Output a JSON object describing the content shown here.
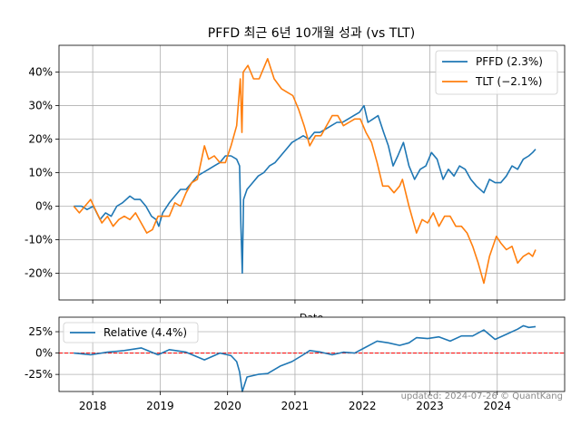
{
  "chart_data": [
    {
      "type": "line",
      "title": "PFFD 최근 6년 10개월 성과 (vs TLT)",
      "xlabel": "Date",
      "ylabel": "",
      "x_ticks": [
        "2018",
        "2019",
        "2020",
        "2021",
        "2022",
        "2023",
        "2024"
      ],
      "y_ticks": [
        "-20%",
        "-10%",
        "0%",
        "10%",
        "20%",
        "30%",
        "40%"
      ],
      "ylim": [
        -28,
        48
      ],
      "xlim": [
        "2017-07",
        "2025-01"
      ],
      "grid": true,
      "legend_position": "top-right",
      "series": [
        {
          "name": "PFFD (2.3%)",
          "color": "#1f77b4",
          "points": [
            [
              "2017-09-20",
              0
            ],
            [
              "2017-11-01",
              0
            ],
            [
              "2017-12-01",
              -1
            ],
            [
              "2018-01-05",
              0
            ],
            [
              "2018-02-10",
              -4
            ],
            [
              "2018-03-10",
              -2
            ],
            [
              "2018-04-10",
              -3
            ],
            [
              "2018-05-10",
              0
            ],
            [
              "2018-06-10",
              1
            ],
            [
              "2018-07-20",
              3
            ],
            [
              "2018-08-15",
              2
            ],
            [
              "2018-09-15",
              2
            ],
            [
              "2018-10-15",
              0
            ],
            [
              "2018-11-15",
              -3
            ],
            [
              "2018-12-10",
              -4
            ],
            [
              "2018-12-24",
              -6
            ],
            [
              "2019-01-15",
              -2
            ],
            [
              "2019-02-20",
              1
            ],
            [
              "2019-03-20",
              3
            ],
            [
              "2019-04-20",
              5
            ],
            [
              "2019-05-20",
              5
            ],
            [
              "2019-06-20",
              7
            ],
            [
              "2019-07-20",
              9
            ],
            [
              "2019-08-20",
              10
            ],
            [
              "2019-09-20",
              11
            ],
            [
              "2019-10-20",
              12
            ],
            [
              "2019-11-20",
              13
            ],
            [
              "2019-12-20",
              15
            ],
            [
              "2020-01-20",
              15
            ],
            [
              "2020-02-20",
              14
            ],
            [
              "2020-03-05",
              12
            ],
            [
              "2020-03-12",
              -5
            ],
            [
              "2020-03-20",
              -20
            ],
            [
              "2020-03-27",
              2
            ],
            [
              "2020-04-15",
              5
            ],
            [
              "2020-05-15",
              7
            ],
            [
              "2020-06-15",
              9
            ],
            [
              "2020-07-15",
              10
            ],
            [
              "2020-08-15",
              12
            ],
            [
              "2020-09-15",
              13
            ],
            [
              "2020-10-15",
              15
            ],
            [
              "2020-11-15",
              17
            ],
            [
              "2020-12-15",
              19
            ],
            [
              "2021-01-15",
              20
            ],
            [
              "2021-02-15",
              21
            ],
            [
              "2021-03-15",
              20
            ],
            [
              "2021-04-15",
              22
            ],
            [
              "2021-05-15",
              22
            ],
            [
              "2021-06-15",
              23
            ],
            [
              "2021-07-15",
              24
            ],
            [
              "2021-08-15",
              25
            ],
            [
              "2021-09-15",
              25
            ],
            [
              "2021-10-15",
              26
            ],
            [
              "2021-11-15",
              27
            ],
            [
              "2021-12-15",
              28
            ],
            [
              "2022-01-10",
              30
            ],
            [
              "2022-01-31",
              25
            ],
            [
              "2022-02-28",
              26
            ],
            [
              "2022-03-25",
              27
            ],
            [
              "2022-04-25",
              22
            ],
            [
              "2022-05-20",
              18
            ],
            [
              "2022-06-15",
              12
            ],
            [
              "2022-07-10",
              15
            ],
            [
              "2022-08-10",
              19
            ],
            [
              "2022-09-10",
              12
            ],
            [
              "2022-10-10",
              8
            ],
            [
              "2022-11-10",
              11
            ],
            [
              "2022-12-10",
              12
            ],
            [
              "2023-01-10",
              16
            ],
            [
              "2023-02-10",
              14
            ],
            [
              "2023-03-12",
              8
            ],
            [
              "2023-04-10",
              11
            ],
            [
              "2023-05-10",
              9
            ],
            [
              "2023-06-10",
              12
            ],
            [
              "2023-07-10",
              11
            ],
            [
              "2023-08-10",
              8
            ],
            [
              "2023-09-10",
              6
            ],
            [
              "2023-10-20",
              4
            ],
            [
              "2023-11-20",
              8
            ],
            [
              "2023-12-20",
              7
            ],
            [
              "2024-01-20",
              7
            ],
            [
              "2024-02-20",
              9
            ],
            [
              "2024-03-20",
              12
            ],
            [
              "2024-04-20",
              11
            ],
            [
              "2024-05-20",
              14
            ],
            [
              "2024-06-20",
              15
            ],
            [
              "2024-07-10",
              16
            ],
            [
              "2024-07-26",
              17
            ]
          ]
        },
        {
          "name": "TLT (−2.1%)",
          "color": "#ff7f0e",
          "points": [
            [
              "2017-09-20",
              0
            ],
            [
              "2017-10-20",
              -2
            ],
            [
              "2017-11-20",
              0
            ],
            [
              "2017-12-20",
              2
            ],
            [
              "2018-01-15",
              -1
            ],
            [
              "2018-02-20",
              -5
            ],
            [
              "2018-03-20",
              -3
            ],
            [
              "2018-04-20",
              -6
            ],
            [
              "2018-05-20",
              -4
            ],
            [
              "2018-06-20",
              -3
            ],
            [
              "2018-07-20",
              -4
            ],
            [
              "2018-08-20",
              -2
            ],
            [
              "2018-09-20",
              -5
            ],
            [
              "2018-10-20",
              -8
            ],
            [
              "2018-11-20",
              -7
            ],
            [
              "2018-12-20",
              -3
            ],
            [
              "2019-01-20",
              -3
            ],
            [
              "2019-02-20",
              -3
            ],
            [
              "2019-03-20",
              1
            ],
            [
              "2019-04-20",
              0
            ],
            [
              "2019-05-20",
              4
            ],
            [
              "2019-06-20",
              7
            ],
            [
              "2019-07-20",
              8
            ],
            [
              "2019-08-28",
              18
            ],
            [
              "2019-09-20",
              14
            ],
            [
              "2019-10-20",
              15
            ],
            [
              "2019-11-20",
              13
            ],
            [
              "2019-12-20",
              13
            ],
            [
              "2020-01-20",
              18
            ],
            [
              "2020-02-20",
              24
            ],
            [
              "2020-03-09",
              38
            ],
            [
              "2020-03-18",
              22
            ],
            [
              "2020-03-25",
              40
            ],
            [
              "2020-04-20",
              42
            ],
            [
              "2020-05-20",
              38
            ],
            [
              "2020-06-20",
              38
            ],
            [
              "2020-07-20",
              42
            ],
            [
              "2020-08-05",
              44
            ],
            [
              "2020-09-10",
              38
            ],
            [
              "2020-10-20",
              35
            ],
            [
              "2020-11-20",
              34
            ],
            [
              "2020-12-20",
              33
            ],
            [
              "2021-01-20",
              29
            ],
            [
              "2021-02-20",
              24
            ],
            [
              "2021-03-20",
              18
            ],
            [
              "2021-04-20",
              21
            ],
            [
              "2021-05-20",
              21
            ],
            [
              "2021-06-20",
              24
            ],
            [
              "2021-07-20",
              27
            ],
            [
              "2021-08-20",
              27
            ],
            [
              "2021-09-20",
              24
            ],
            [
              "2021-10-20",
              25
            ],
            [
              "2021-11-20",
              26
            ],
            [
              "2021-12-20",
              26
            ],
            [
              "2022-01-20",
              22
            ],
            [
              "2022-02-20",
              19
            ],
            [
              "2022-03-20",
              13
            ],
            [
              "2022-04-20",
              6
            ],
            [
              "2022-05-20",
              6
            ],
            [
              "2022-06-20",
              4
            ],
            [
              "2022-07-20",
              6
            ],
            [
              "2022-08-05",
              8
            ],
            [
              "2022-09-10",
              0
            ],
            [
              "2022-10-20",
              -8
            ],
            [
              "2022-11-20",
              -4
            ],
            [
              "2022-12-20",
              -5
            ],
            [
              "2023-01-20",
              -2
            ],
            [
              "2023-02-20",
              -6
            ],
            [
              "2023-03-20",
              -3
            ],
            [
              "2023-04-20",
              -3
            ],
            [
              "2023-05-20",
              -6
            ],
            [
              "2023-06-20",
              -6
            ],
            [
              "2023-07-20",
              -8
            ],
            [
              "2023-08-20",
              -12
            ],
            [
              "2023-09-20",
              -17
            ],
            [
              "2023-10-20",
              -23
            ],
            [
              "2023-11-20",
              -15
            ],
            [
              "2023-12-27",
              -9
            ],
            [
              "2024-01-20",
              -11
            ],
            [
              "2024-02-20",
              -13
            ],
            [
              "2024-03-20",
              -12
            ],
            [
              "2024-04-20",
              -17
            ],
            [
              "2024-05-20",
              -15
            ],
            [
              "2024-06-20",
              -14
            ],
            [
              "2024-07-10",
              -15
            ],
            [
              "2024-07-26",
              -13
            ]
          ]
        }
      ]
    },
    {
      "type": "line",
      "title": "",
      "xlabel": "",
      "ylabel": "",
      "x_ticks": [
        "2018",
        "2019",
        "2020",
        "2021",
        "2022",
        "2023",
        "2024"
      ],
      "y_ticks": [
        "-25%",
        "0%",
        "25%"
      ],
      "ylim": [
        -45,
        42
      ],
      "xlim": [
        "2017-07",
        "2025-01"
      ],
      "grid": true,
      "legend_position": "top-left",
      "reference_line": {
        "y": 0,
        "color": "#ff0000",
        "style": "dashed"
      },
      "series": [
        {
          "name": "Relative (4.4%)",
          "color": "#1f77b4",
          "points": [
            [
              "2017-09-20",
              0
            ],
            [
              "2017-12-20",
              -2
            ],
            [
              "2018-03-20",
              1
            ],
            [
              "2018-06-20",
              3
            ],
            [
              "2018-09-20",
              6
            ],
            [
              "2018-12-20",
              -2
            ],
            [
              "2019-02-20",
              4
            ],
            [
              "2019-05-20",
              1
            ],
            [
              "2019-08-28",
              -8
            ],
            [
              "2019-11-20",
              0
            ],
            [
              "2020-01-20",
              -3
            ],
            [
              "2020-02-20",
              -10
            ],
            [
              "2020-03-05",
              -22
            ],
            [
              "2020-03-20",
              -45
            ],
            [
              "2020-04-15",
              -28
            ],
            [
              "2020-06-15",
              -25
            ],
            [
              "2020-08-05",
              -24
            ],
            [
              "2020-10-15",
              -15
            ],
            [
              "2020-12-15",
              -10
            ],
            [
              "2021-02-15",
              -2
            ],
            [
              "2021-03-20",
              3
            ],
            [
              "2021-05-20",
              1
            ],
            [
              "2021-07-20",
              -2
            ],
            [
              "2021-09-20",
              1
            ],
            [
              "2021-11-20",
              0
            ],
            [
              "2022-01-20",
              7
            ],
            [
              "2022-03-20",
              14
            ],
            [
              "2022-05-20",
              12
            ],
            [
              "2022-07-20",
              9
            ],
            [
              "2022-09-10",
              12
            ],
            [
              "2022-10-20",
              18
            ],
            [
              "2022-12-20",
              17
            ],
            [
              "2023-02-20",
              19
            ],
            [
              "2023-04-20",
              14
            ],
            [
              "2023-06-20",
              20
            ],
            [
              "2023-08-20",
              20
            ],
            [
              "2023-10-20",
              27
            ],
            [
              "2023-12-20",
              16
            ],
            [
              "2024-02-20",
              22
            ],
            [
              "2024-04-20",
              28
            ],
            [
              "2024-05-20",
              32
            ],
            [
              "2024-06-20",
              30
            ],
            [
              "2024-07-26",
              31
            ]
          ]
        }
      ]
    }
  ],
  "footer": {
    "credit": "updated: 2024-07-26 © QuantKang"
  }
}
